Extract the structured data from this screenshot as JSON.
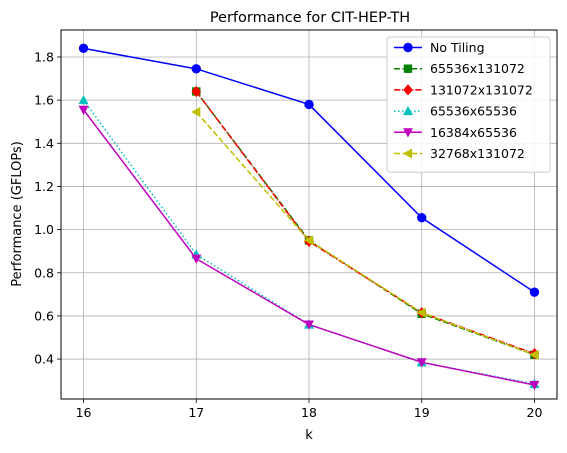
{
  "chart_data": {
    "type": "line",
    "title": "Performance for CIT-HEP-TH",
    "xlabel": "k",
    "ylabel": "Performance (GFLOPs)",
    "xlim": [
      15.8,
      20.2
    ],
    "ylim": [
      0.215,
      1.925
    ],
    "xticks": [
      16,
      17,
      18,
      19,
      20
    ],
    "yticks": [
      0.4,
      0.6,
      0.8,
      1.0,
      1.2,
      1.4,
      1.6,
      1.8
    ],
    "ytick_labels": [
      "0.4",
      "0.6",
      "0.8",
      "1.0",
      "1.2",
      "1.4",
      "1.6",
      "1.8"
    ],
    "grid": true,
    "legend_position": "top-right",
    "series": [
      {
        "name": "No Tiling",
        "x": [
          16,
          17,
          18,
          19,
          20
        ],
        "y": [
          1.84,
          1.745,
          1.58,
          1.055,
          0.71
        ],
        "color": "#0000ff",
        "dash": "solid",
        "marker": "circle"
      },
      {
        "name": "65536x131072",
        "x": [
          17,
          18,
          19,
          20
        ],
        "y": [
          1.64,
          0.95,
          0.61,
          0.42
        ],
        "color": "#008000",
        "dash": "dashed",
        "marker": "square"
      },
      {
        "name": "131072x131072",
        "x": [
          17,
          18,
          19,
          20
        ],
        "y": [
          1.64,
          0.945,
          0.615,
          0.425
        ],
        "color": "#ff0000",
        "dash": "dashdot",
        "marker": "diamond"
      },
      {
        "name": "65536x65536",
        "x": [
          16,
          17,
          18,
          19,
          20
        ],
        "y": [
          1.6,
          0.885,
          0.56,
          0.385,
          0.285
        ],
        "color": "#00bfbf",
        "dash": "dotted",
        "marker": "triangle-up"
      },
      {
        "name": "16384x65536",
        "x": [
          16,
          17,
          18,
          19,
          20
        ],
        "y": [
          1.555,
          0.865,
          0.56,
          0.385,
          0.28
        ],
        "color": "#bf00bf",
        "dash": "solid",
        "marker": "triangle-down"
      },
      {
        "name": "32768x131072",
        "x": [
          17,
          18,
          19,
          20
        ],
        "y": [
          1.545,
          0.95,
          0.615,
          0.42
        ],
        "color": "#bfbf00",
        "dash": "dashed",
        "marker": "triangle-left"
      }
    ]
  }
}
